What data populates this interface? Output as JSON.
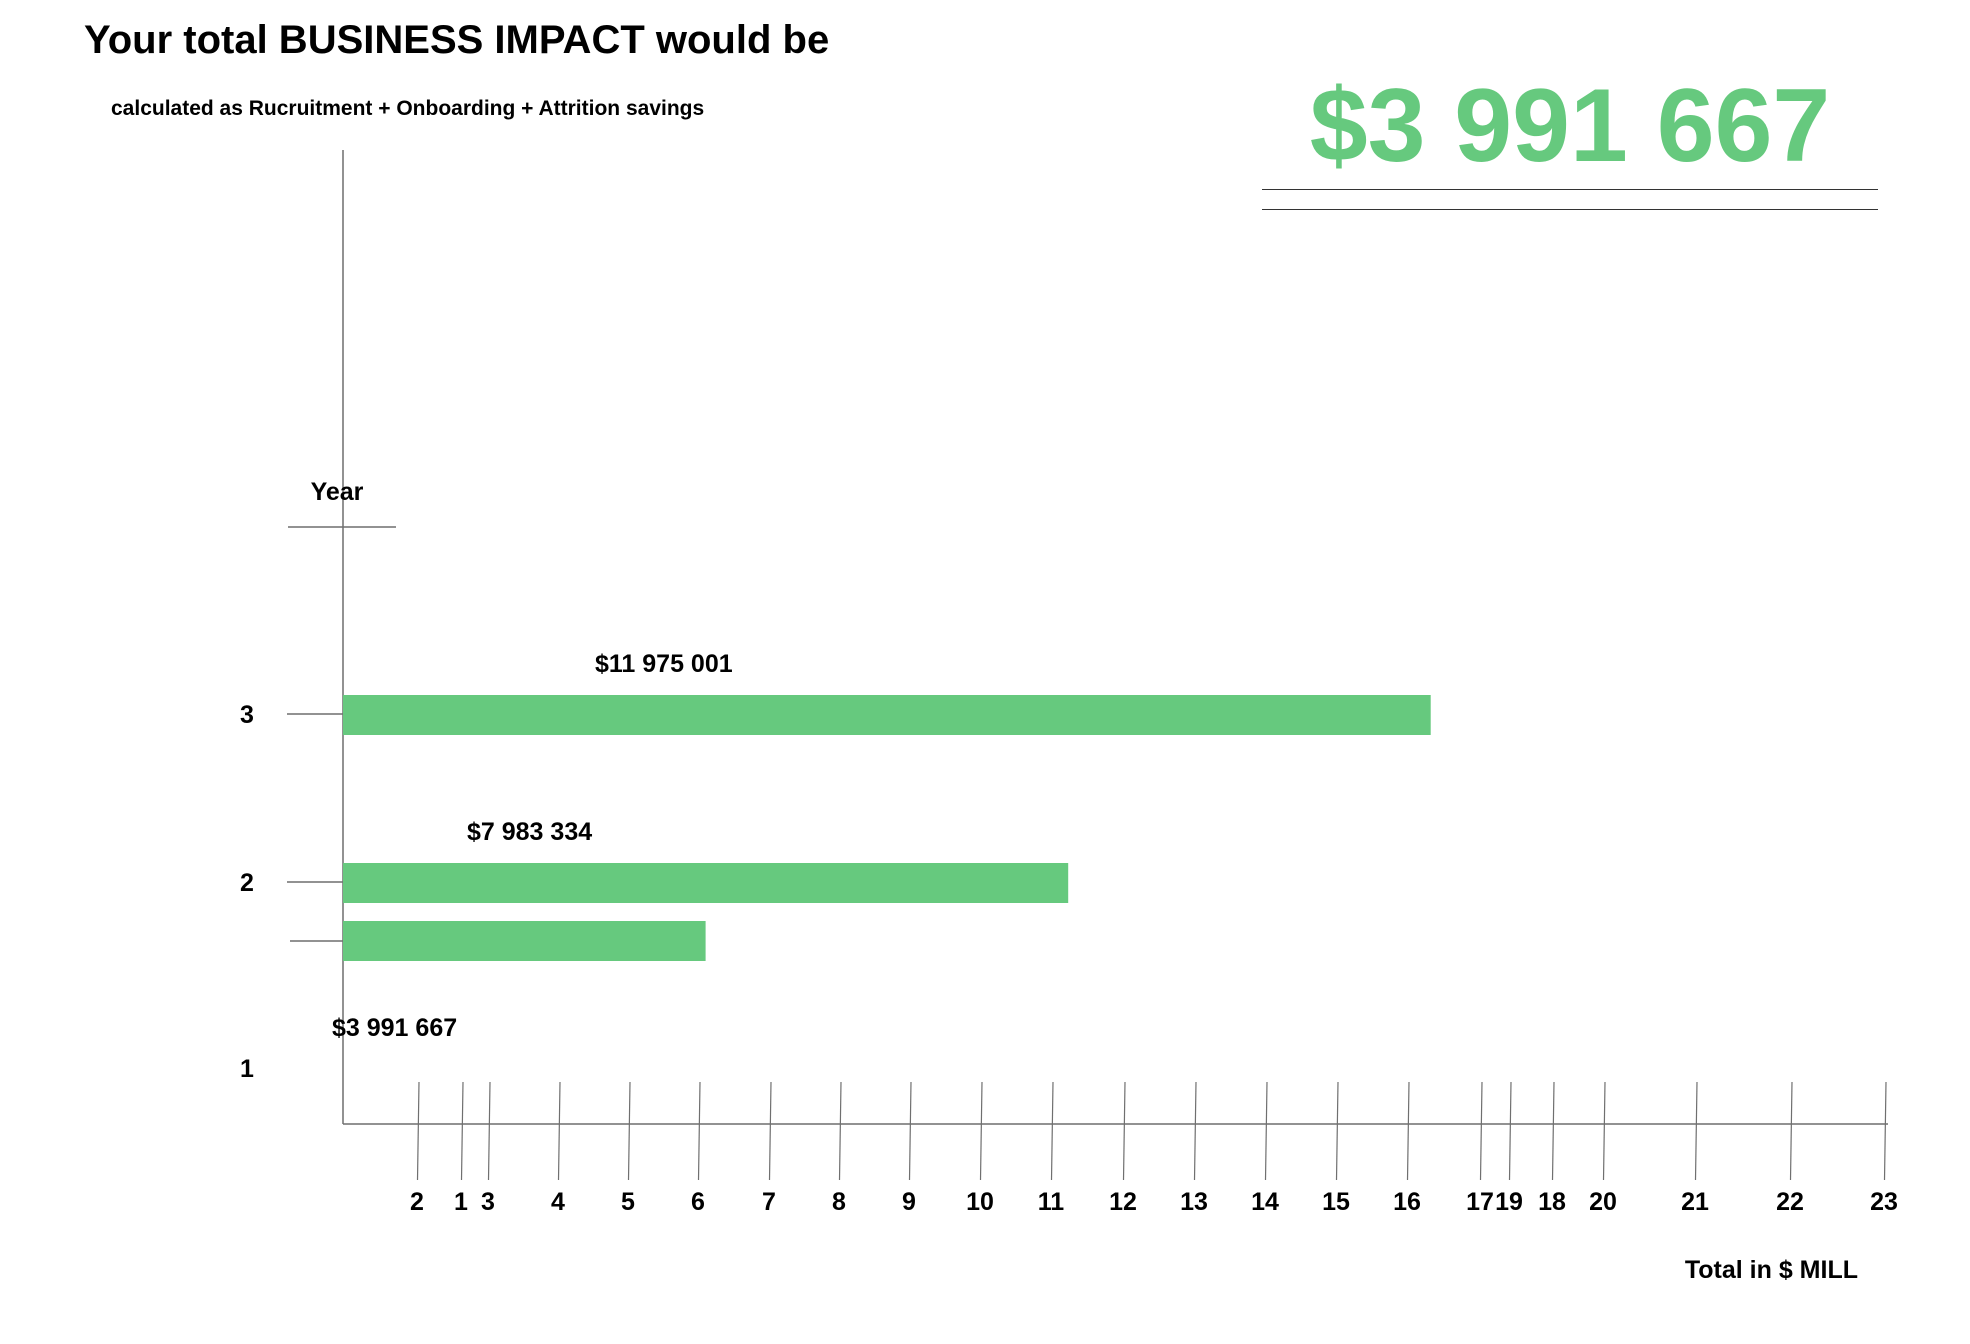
{
  "header": {
    "title": "Your total BUSINESS IMPACT would be",
    "subtitle": "calculated as Rucruitment + Onboarding + Attrition savings",
    "total_value": "$3 991 667"
  },
  "colors": {
    "accent": "#66c97e",
    "axis": "#6f6f6f",
    "text": "#000000"
  },
  "chart_data": {
    "type": "bar",
    "orientation": "horizontal",
    "ylabel": "Year",
    "xlabel": "Total in $ MILL",
    "categories": [
      "1",
      "2",
      "3"
    ],
    "bars": [
      {
        "category": "1",
        "value": 3991667,
        "label": "$3 991 667"
      },
      {
        "category": "2",
        "value": 7983334,
        "label": "$7 983 334"
      },
      {
        "category": "3",
        "value": 11975001,
        "label": "$11 975 001"
      }
    ],
    "x_tick_labels": [
      "2",
      "1",
      "3",
      "4",
      "5",
      "6",
      "7",
      "8",
      "9",
      "10",
      "11",
      "12",
      "13",
      "14",
      "15",
      "16",
      "17",
      "19",
      "18",
      "20",
      "21",
      "22",
      "23"
    ],
    "grid": false,
    "legend": "none"
  }
}
